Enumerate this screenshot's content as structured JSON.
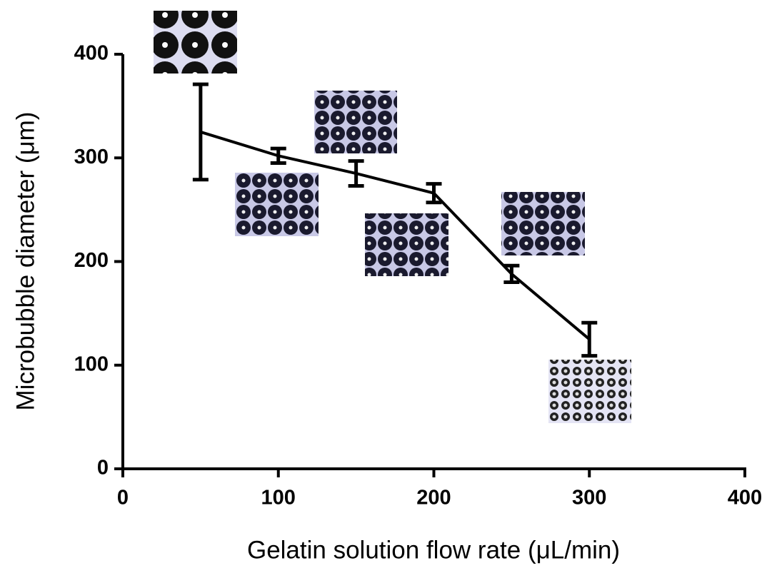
{
  "chart_data": {
    "type": "line",
    "x_label": "Gelatin solution flow rate (μL/min)",
    "y_label": "Microbubble diameter  (μm)",
    "x": [
      50,
      100,
      150,
      200,
      250,
      300
    ],
    "values": [
      325,
      302,
      285,
      266,
      188,
      125
    ],
    "errors": [
      46,
      7,
      12,
      9,
      8,
      16
    ],
    "color": "#000000",
    "xlim": [
      0,
      400
    ],
    "xticks": [
      0,
      100,
      200,
      300,
      400
    ],
    "ylim": [
      0,
      400
    ],
    "yticks": [
      0,
      100,
      200,
      300,
      400
    ]
  }
}
